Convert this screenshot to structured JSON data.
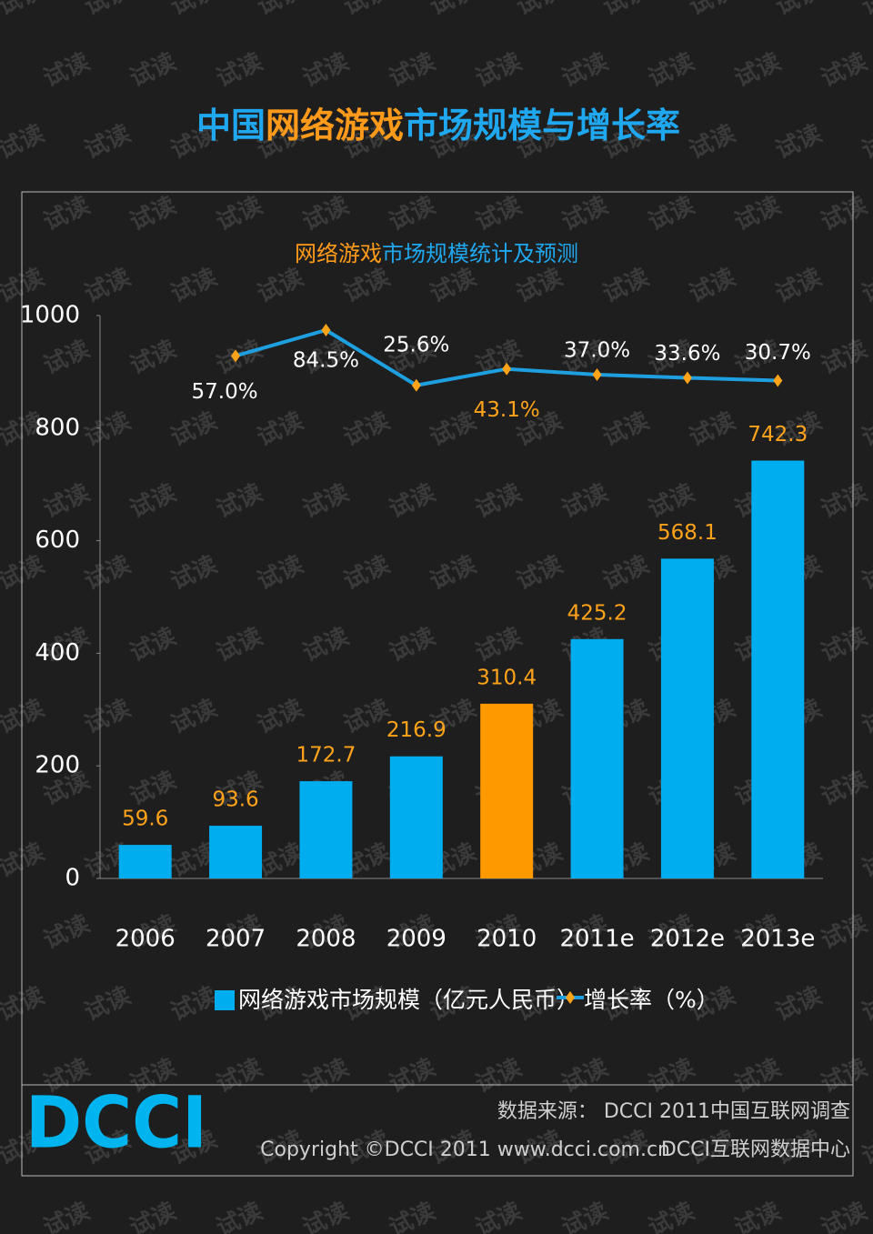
{
  "chart_data": {
    "type": "bar_line",
    "title_parts": [
      {
        "text": "中国",
        "color": "#1fa8f0"
      },
      {
        "text": "网络游戏",
        "color": "#ff9a1a"
      },
      {
        "text": "市场规模与增长率",
        "color": "#1fa8f0"
      }
    ],
    "subtitle_parts": [
      {
        "text": "网络游戏",
        "color": "#ff9a1a"
      },
      {
        "text": "市场规模统计及预测",
        "color": "#1fa8f0"
      }
    ],
    "categories": [
      "2006",
      "2007",
      "2008",
      "2009",
      "2010",
      "2011e",
      "2012e",
      "2013e"
    ],
    "series": [
      {
        "name": "网络游戏市场规模（亿元人民币）",
        "color": "#00aeef",
        "colors": [
          "#00aeef",
          "#00aeef",
          "#00aeef",
          "#00aeef",
          "#ff9900",
          "#00aeef",
          "#00aeef",
          "#00aeef"
        ],
        "label_color": "#ffa31a",
        "values": [
          59.6,
          93.6,
          172.7,
          216.9,
          310.4,
          425.2,
          568.1,
          742.3
        ]
      },
      {
        "name": "增长率（%）",
        "color": "#1ea0e0",
        "marker_color": "#ffa31a",
        "axis": "y2",
        "label_colors": [
          "#ffffff",
          "#ffffff",
          "#ffffff",
          "#ffffff",
          "#ffa31a",
          "#ffffff",
          "#ffffff",
          "#ffffff"
        ],
        "values": [
          null,
          57.0,
          84.5,
          25.6,
          43.1,
          37.0,
          33.6,
          30.7
        ],
        "value_labels": [
          null,
          "57.0%",
          "84.5%",
          "25.6%",
          "43.1%",
          "37.0%",
          "33.6%",
          "30.7%"
        ]
      }
    ],
    "ylim": [
      0,
      1000
    ],
    "yticks": [
      0,
      200,
      400,
      600,
      800,
      1000
    ],
    "y2lim": [
      -500,
      100
    ],
    "watermark": "试读",
    "logo": "DCCI",
    "source": "数据来源： DCCI 2011中国互联网调查",
    "copyright": "Copyright ©DCCI 2011 www.dcci.com.cn",
    "org": "DCCI互联网数据中心"
  }
}
